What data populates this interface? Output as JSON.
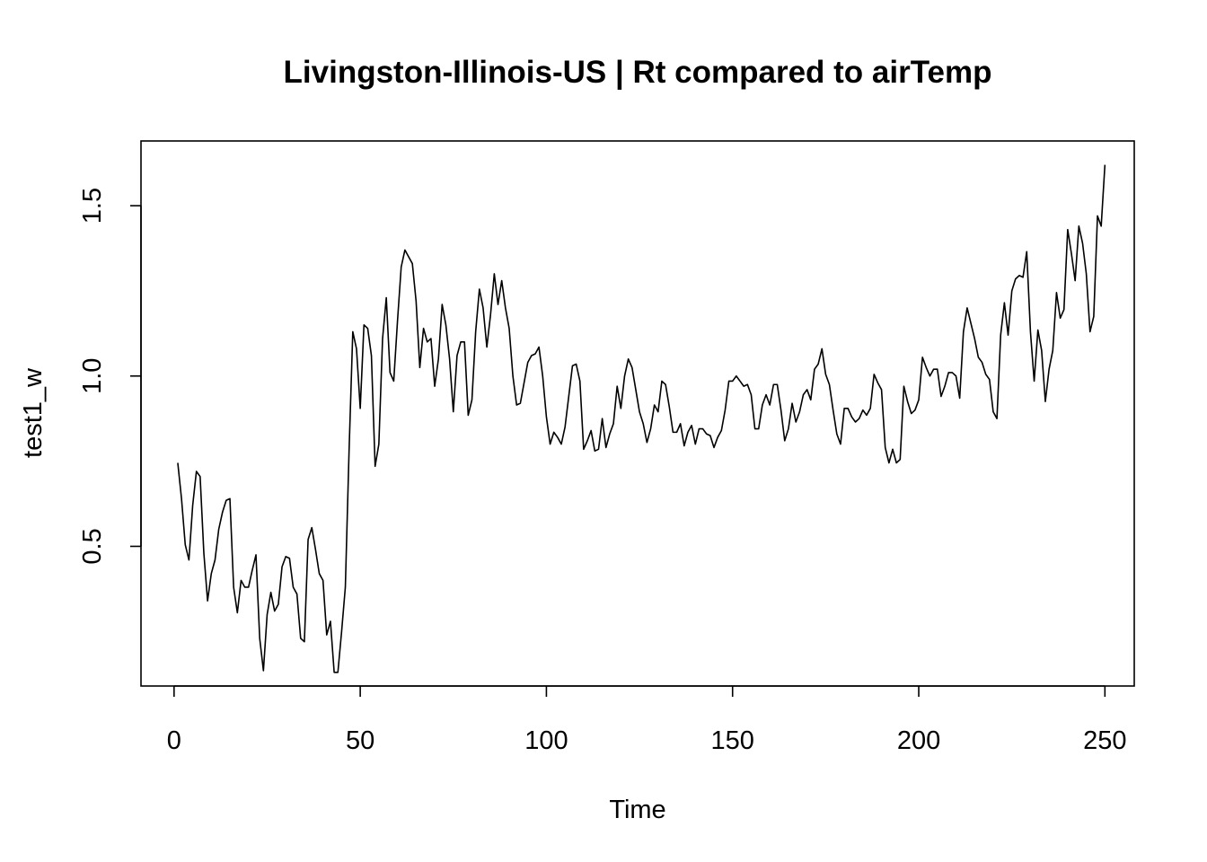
{
  "chart_data": {
    "type": "line",
    "title": "Livingston-Illinois-US | Rt compared to airTemp",
    "xlabel": "Time",
    "ylabel": "test1_w",
    "xlim": [
      -8.88,
      257.88
    ],
    "ylim": [
      0.09,
      1.69
    ],
    "x_ticks": [
      {
        "value": 0,
        "label": "0"
      },
      {
        "value": 50,
        "label": "50"
      },
      {
        "value": 100,
        "label": "100"
      },
      {
        "value": 150,
        "label": "150"
      },
      {
        "value": 200,
        "label": "200"
      },
      {
        "value": 250,
        "label": "250"
      }
    ],
    "y_ticks": [
      {
        "value": 0.5,
        "label": "0.5"
      },
      {
        "value": 1.0,
        "label": "1.0"
      },
      {
        "value": 1.5,
        "label": "1.5"
      }
    ],
    "grid": false,
    "line_color": "#000000",
    "series": [
      {
        "x_start": 1,
        "x_step": 1,
        "values": [
          0.745,
          0.64,
          0.505,
          0.46,
          0.62,
          0.72,
          0.705,
          0.48,
          0.34,
          0.42,
          0.46,
          0.55,
          0.6,
          0.635,
          0.64,
          0.38,
          0.305,
          0.4,
          0.38,
          0.38,
          0.43,
          0.475,
          0.23,
          0.135,
          0.3,
          0.365,
          0.31,
          0.33,
          0.44,
          0.47,
          0.465,
          0.38,
          0.36,
          0.23,
          0.22,
          0.52,
          0.555,
          0.49,
          0.42,
          0.4,
          0.24,
          0.28,
          0.13,
          0.13,
          0.25,
          0.38,
          0.78,
          1.13,
          1.08,
          0.905,
          1.15,
          1.14,
          1.06,
          0.735,
          0.8,
          1.11,
          1.23,
          1.01,
          0.985,
          1.16,
          1.32,
          1.37,
          1.35,
          1.33,
          1.22,
          1.025,
          1.14,
          1.1,
          1.11,
          0.97,
          1.05,
          1.21,
          1.15,
          1.05,
          0.895,
          1.06,
          1.1,
          1.1,
          0.885,
          0.93,
          1.13,
          1.255,
          1.2,
          1.085,
          1.18,
          1.3,
          1.21,
          1.28,
          1.2,
          1.14,
          1.0,
          0.915,
          0.92,
          0.98,
          1.04,
          1.06,
          1.065,
          1.085,
          1.0,
          0.88,
          0.8,
          0.835,
          0.82,
          0.8,
          0.85,
          0.94,
          1.03,
          1.035,
          0.985,
          0.785,
          0.81,
          0.84,
          0.78,
          0.785,
          0.875,
          0.79,
          0.83,
          0.86,
          0.97,
          0.905,
          1.0,
          1.05,
          1.025,
          0.96,
          0.895,
          0.86,
          0.805,
          0.845,
          0.915,
          0.895,
          0.985,
          0.975,
          0.91,
          0.835,
          0.835,
          0.86,
          0.795,
          0.835,
          0.855,
          0.8,
          0.845,
          0.845,
          0.83,
          0.825,
          0.79,
          0.82,
          0.84,
          0.9,
          0.985,
          0.985,
          1.0,
          0.985,
          0.97,
          0.975,
          0.945,
          0.845,
          0.845,
          0.915,
          0.945,
          0.915,
          0.975,
          0.975,
          0.9,
          0.81,
          0.845,
          0.92,
          0.865,
          0.895,
          0.945,
          0.96,
          0.93,
          1.02,
          1.035,
          1.08,
          1.005,
          0.975,
          0.9,
          0.83,
          0.8,
          0.905,
          0.905,
          0.88,
          0.865,
          0.875,
          0.9,
          0.885,
          0.905,
          1.005,
          0.98,
          0.96,
          0.79,
          0.745,
          0.785,
          0.745,
          0.755,
          0.97,
          0.925,
          0.89,
          0.9,
          0.93,
          1.055,
          1.025,
          1.0,
          1.02,
          1.02,
          0.94,
          0.97,
          1.01,
          1.01,
          1.0,
          0.935,
          1.13,
          1.2,
          1.155,
          1.11,
          1.055,
          1.04,
          1.005,
          0.99,
          0.895,
          0.875,
          1.12,
          1.215,
          1.12,
          1.25,
          1.285,
          1.295,
          1.29,
          1.365,
          1.13,
          0.985,
          1.135,
          1.075,
          0.925,
          1.02,
          1.075,
          1.245,
          1.17,
          1.195,
          1.43,
          1.36,
          1.28,
          1.44,
          1.39,
          1.3,
          1.13,
          1.175,
          1.47,
          1.44,
          1.62
        ]
      }
    ]
  }
}
